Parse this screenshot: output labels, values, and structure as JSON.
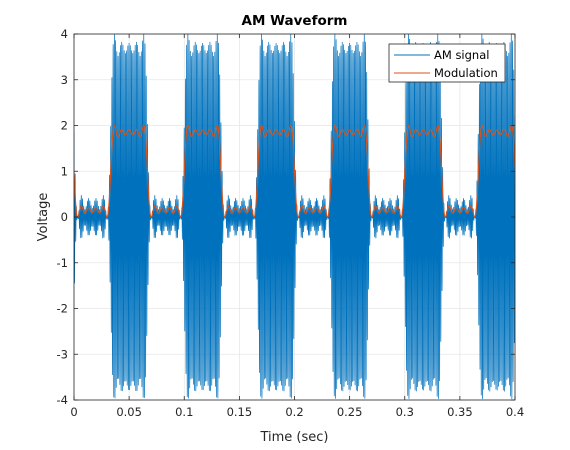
{
  "chart_data": {
    "type": "line",
    "title": "AM Waveform",
    "xlabel": "Time (sec)",
    "ylabel": "Voltage",
    "xlim": [
      0,
      0.4
    ],
    "ylim": [
      -4,
      4
    ],
    "xticks": [
      0,
      0.05,
      0.1,
      0.15,
      0.2,
      0.25,
      0.3,
      0.35,
      0.4
    ],
    "xtick_labels": [
      "0",
      "0.05",
      "0.1",
      "0.15",
      "0.2",
      "0.25",
      "0.3",
      "0.35",
      "0.4"
    ],
    "yticks": [
      -4,
      -3,
      -2,
      -1,
      0,
      1,
      2,
      3,
      4
    ],
    "ytick_labels": [
      "-4",
      "-3",
      "-2",
      "-1",
      "0",
      "1",
      "2",
      "3",
      "4"
    ],
    "grid": true,
    "legend": "top-right",
    "modulation_square_wave": {
      "period": 0.0667,
      "high_start": 0.0333,
      "high_level": 1.85,
      "low_level": 0.15
    },
    "carrier_frequency_hz": 900,
    "series": [
      {
        "name": "AM signal",
        "color": "#0072BD"
      },
      {
        "name": "Modulation",
        "color": "#D95319"
      }
    ]
  }
}
